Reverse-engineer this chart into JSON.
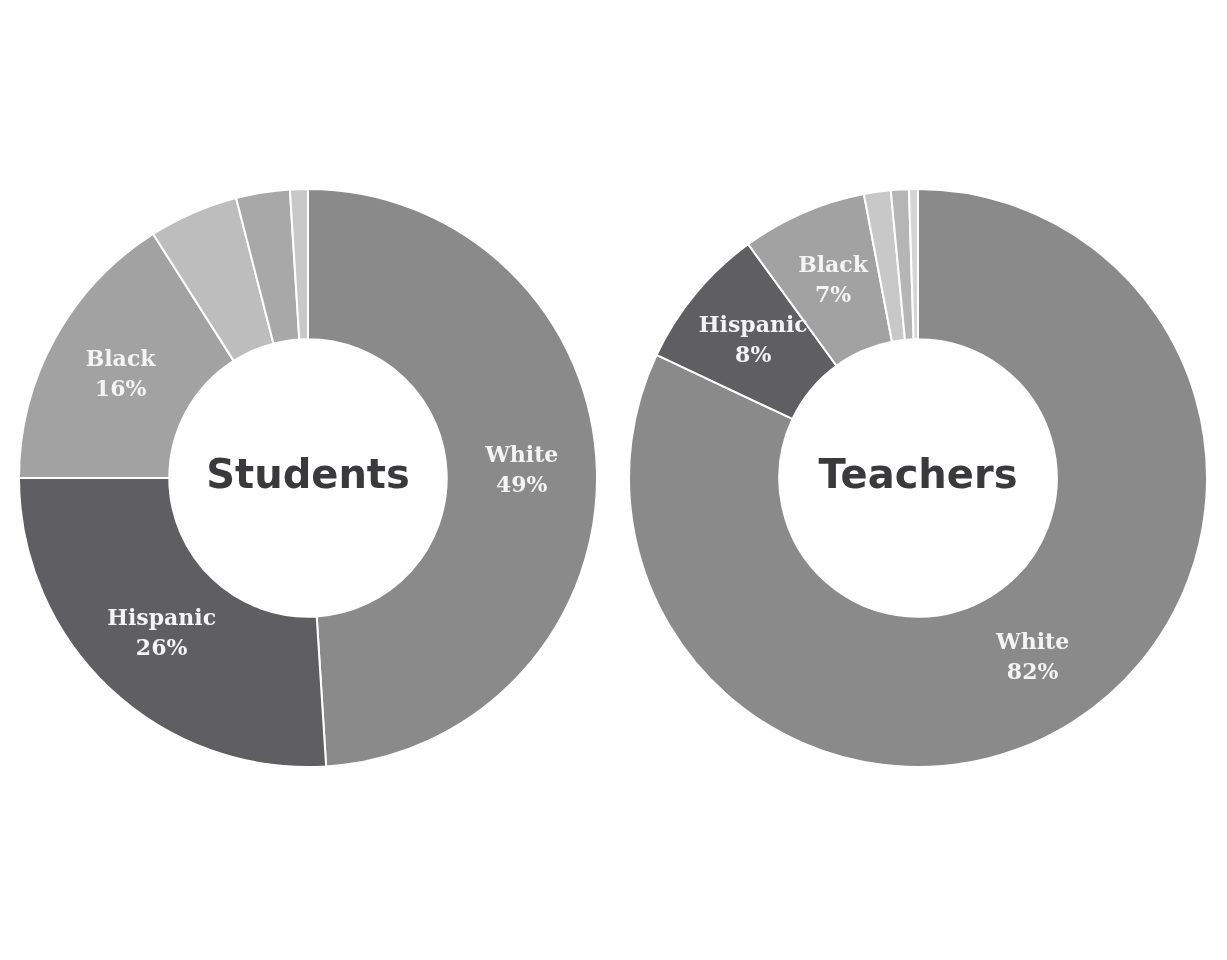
{
  "chart_data": [
    {
      "type": "donut",
      "title": "Students",
      "categories": [
        "White",
        "Hispanic",
        "Black",
        null,
        null,
        null
      ],
      "values": [
        49,
        26,
        16,
        5,
        3,
        1
      ],
      "colors": [
        "#8a8a8b",
        "#5f5f61",
        "#a2a2a3",
        "#bdbdbe",
        "#a8a8a9",
        "#c8c8c9"
      ],
      "value_labels": [
        "49%",
        "26%",
        "16%",
        null,
        null,
        null
      ]
    },
    {
      "type": "donut",
      "title": "Teachers",
      "categories": [
        "White",
        "Hispanic",
        "Black",
        null,
        null,
        null
      ],
      "values": [
        82,
        8,
        7,
        1.5,
        1,
        0.5
      ],
      "colors": [
        "#8a8a8b",
        "#5f5f61",
        "#a2a2a3",
        "#c8c8c9",
        "#b5b5b6",
        "#d5d5d6"
      ],
      "value_labels": [
        "82%",
        "8%",
        "7%",
        null,
        null,
        null
      ]
    }
  ]
}
